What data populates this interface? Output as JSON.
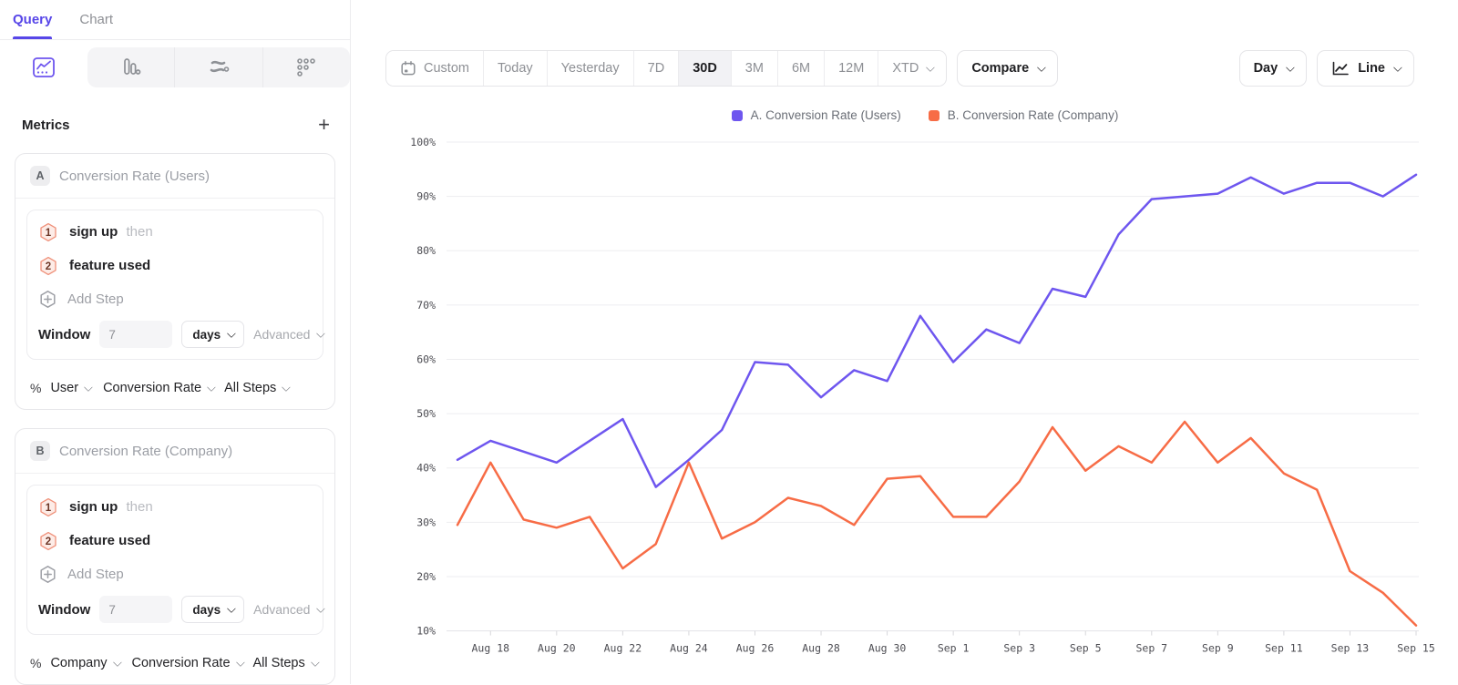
{
  "sidebar": {
    "tabs": [
      {
        "label": "Query",
        "active": true
      },
      {
        "label": "Chart",
        "active": false
      }
    ],
    "chart_types": [
      "line-chart",
      "bar-chart",
      "flow-chart",
      "funnel-dots"
    ],
    "metrics_title": "Metrics",
    "metrics_add": "+",
    "cards": [
      {
        "badge": "A",
        "title": "Conversion Rate (Users)",
        "steps": [
          {
            "num": "1",
            "event": "sign up",
            "connector": "then"
          },
          {
            "num": "2",
            "event": "feature used",
            "connector": ""
          }
        ],
        "add_step": "Add Step",
        "window": {
          "label": "Window",
          "value": "7",
          "unit": "days",
          "advanced": "Advanced"
        },
        "footer": {
          "percent": "%",
          "subject": "User",
          "measure": "Conversion Rate",
          "scope": "All Steps"
        }
      },
      {
        "badge": "B",
        "title": "Conversion Rate (Company)",
        "steps": [
          {
            "num": "1",
            "event": "sign up",
            "connector": "then"
          },
          {
            "num": "2",
            "event": "feature used",
            "connector": ""
          }
        ],
        "add_step": "Add Step",
        "window": {
          "label": "Window",
          "value": "7",
          "unit": "days",
          "advanced": "Advanced"
        },
        "footer": {
          "percent": "%",
          "subject": "Company",
          "measure": "Conversion Rate",
          "scope": "All Steps"
        }
      }
    ]
  },
  "toolbar": {
    "date_ranges": [
      {
        "label": "Custom",
        "icon": "calendar-icon"
      },
      {
        "label": "Today"
      },
      {
        "label": "Yesterday"
      },
      {
        "label": "7D"
      },
      {
        "label": "30D",
        "active": true
      },
      {
        "label": "3M"
      },
      {
        "label": "6M"
      },
      {
        "label": "12M"
      },
      {
        "label": "XTD",
        "chevron": true
      }
    ],
    "compare_label": "Compare",
    "granularity_label": "Day",
    "chart_style_label": "Line"
  },
  "chart_data": {
    "type": "line",
    "x": [
      "Aug 17",
      "Aug 18",
      "Aug 19",
      "Aug 20",
      "Aug 21",
      "Aug 22",
      "Aug 23",
      "Aug 24",
      "Aug 25",
      "Aug 26",
      "Aug 27",
      "Aug 28",
      "Aug 29",
      "Aug 30",
      "Aug 31",
      "Sep 1",
      "Sep 2",
      "Sep 3",
      "Sep 4",
      "Sep 5",
      "Sep 6",
      "Sep 7",
      "Sep 8",
      "Sep 9",
      "Sep 10",
      "Sep 11",
      "Sep 12",
      "Sep 13",
      "Sep 14",
      "Sep 15"
    ],
    "x_tick_labels": [
      "Aug 18",
      "Aug 20",
      "Aug 22",
      "Aug 24",
      "Aug 26",
      "Aug 28",
      "Aug 30",
      "Sep 1",
      "Sep 3",
      "Sep 5",
      "Sep 7",
      "Sep 9",
      "Sep 11",
      "Sep 13",
      "Sep 15"
    ],
    "y_ticks": [
      100,
      90,
      80,
      70,
      60,
      50,
      40,
      30,
      20,
      10
    ],
    "y_unit": "%",
    "ylim": [
      10,
      100
    ],
    "grid": true,
    "legend_position": "top",
    "series": [
      {
        "name": "A. Conversion Rate (Users)",
        "color": "#6e56ef",
        "values": [
          41.5,
          45,
          43,
          41,
          45,
          49,
          36.5,
          41.5,
          47,
          59.5,
          59,
          53,
          58,
          56,
          68,
          59.5,
          65.5,
          63,
          73,
          71.5,
          83,
          89.5,
          90,
          90.5,
          93.5,
          90.5,
          92.5,
          92.5,
          90,
          94
        ]
      },
      {
        "name": "B. Conversion Rate (Company)",
        "color": "#f76c46",
        "values": [
          29.5,
          41,
          30.5,
          29,
          31,
          21.5,
          26,
          41,
          27,
          30,
          34.5,
          33,
          29.5,
          38,
          38.5,
          31,
          31,
          37.5,
          47.5,
          39.5,
          44,
          41,
          48.5,
          41,
          45.5,
          39,
          36,
          21,
          17,
          11
        ]
      }
    ]
  },
  "colors": {
    "accent": "#5746e8",
    "series_a": "#6e56ef",
    "series_b": "#f76c46"
  }
}
